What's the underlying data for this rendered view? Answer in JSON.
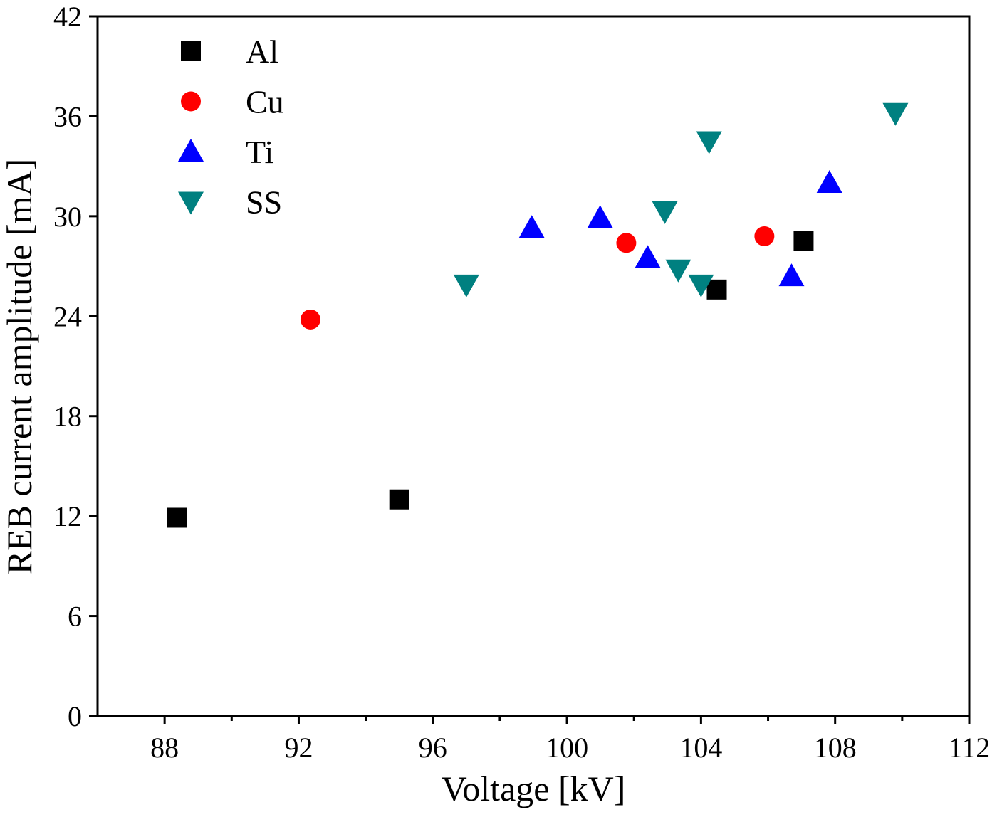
{
  "chart_data": {
    "type": "scatter",
    "x_label": "Voltage [kV]",
    "y_label": "REB current amplitude [mA]",
    "xlim": [
      86,
      112
    ],
    "xticks": [
      88,
      92,
      96,
      100,
      104,
      108,
      112
    ],
    "xminorticks": [
      90,
      94,
      98,
      102,
      106,
      110
    ],
    "ylim": [
      0,
      42
    ],
    "yticks": [
      0,
      6,
      12,
      18,
      24,
      30,
      36,
      42
    ],
    "legend": "top-left",
    "series": [
      {
        "name": "Al",
        "color": "#000000",
        "marker": "square",
        "x": [
          88.36,
          95.0,
          104.47,
          107.06
        ],
        "values": [
          11.9,
          13.0,
          25.6,
          28.5
        ]
      },
      {
        "name": "Cu",
        "color": "#ff0000",
        "marker": "circle",
        "x": [
          92.35,
          101.77,
          105.89
        ],
        "values": [
          23.8,
          28.4,
          28.8
        ]
      },
      {
        "name": "Ti",
        "color": "#0000ff",
        "marker": "triangle-up",
        "x": [
          98.95,
          100.99,
          102.41,
          106.7,
          107.83
        ],
        "values": [
          29.3,
          29.9,
          27.5,
          26.4,
          32.0
        ]
      },
      {
        "name": "SS",
        "color": "#008080",
        "marker": "triangle-down",
        "x": [
          97.0,
          102.92,
          103.32,
          104.0,
          104.24,
          109.8
        ],
        "values": [
          25.9,
          30.3,
          26.8,
          25.9,
          34.5,
          36.2
        ]
      }
    ]
  }
}
